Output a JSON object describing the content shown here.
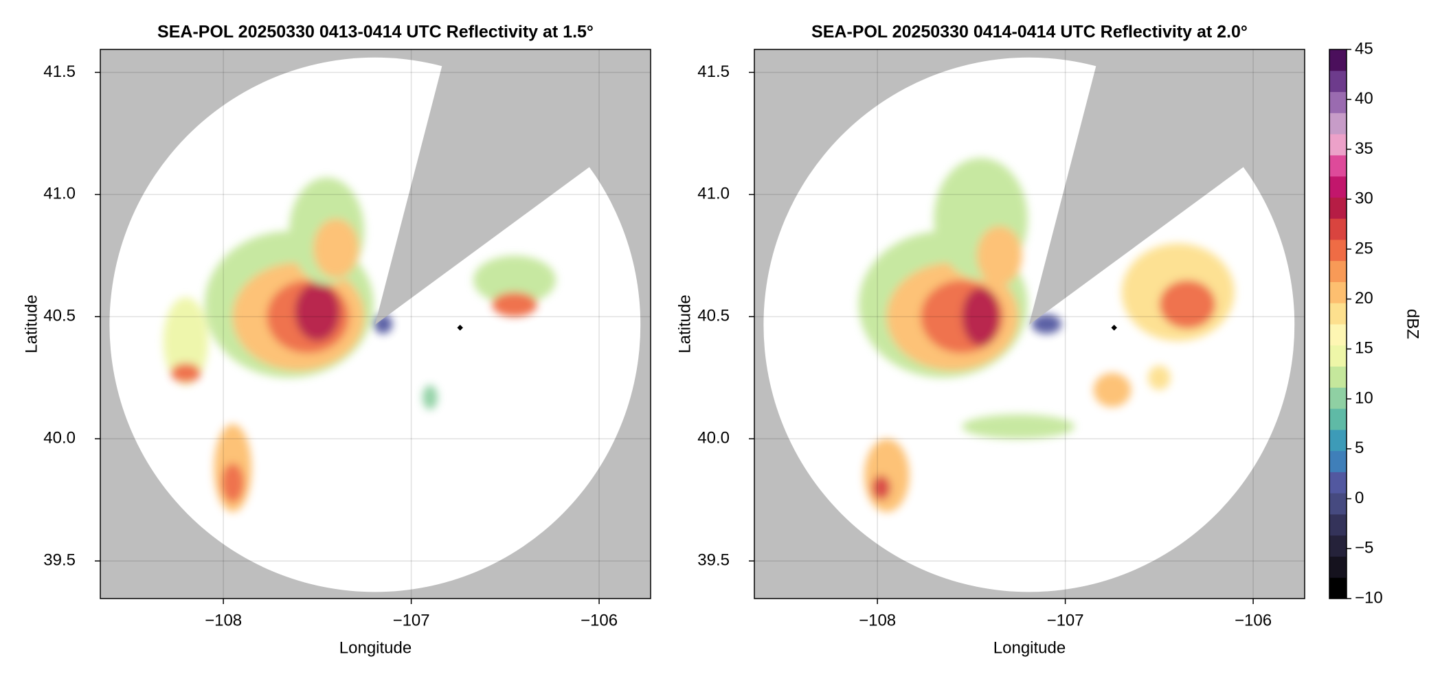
{
  "chart_data": [
    {
      "type": "radar-ppi",
      "title": "SEA-POL 20250330 0413-0414 UTC Reflectivity at 1.5°",
      "x_label": "Longitude",
      "y_label": "Latitude",
      "xlim": [
        -108.655,
        -105.726
      ],
      "ylim": [
        39.346,
        41.594
      ],
      "xticks": [
        {
          "value": -108,
          "label": "−108"
        },
        {
          "value": -107,
          "label": "−107"
        },
        {
          "value": -106,
          "label": "−106"
        }
      ],
      "yticks": [
        39.5,
        {
          "value": 40,
          "label": "40.0"
        },
        40.5,
        {
          "value": 41,
          "label": "41.0"
        },
        41.5
      ],
      "grid": true
    },
    {
      "type": "radar-ppi",
      "title": "SEA-POL 20250330 0414-0414 UTC Reflectivity at 2.0°",
      "x_label": "Longitude",
      "y_label": "Latitude",
      "xlim": [
        -108.655,
        -105.726
      ],
      "ylim": [
        39.346,
        41.594
      ],
      "xticks": [
        {
          "value": -108,
          "label": "−108"
        },
        {
          "value": -107,
          "label": "−107"
        },
        {
          "value": -106,
          "label": "−106"
        }
      ],
      "yticks": [
        39.5,
        {
          "value": 40,
          "label": "40.0"
        },
        40.5,
        {
          "value": 41,
          "label": "41.0"
        },
        41.5
      ],
      "grid": true
    }
  ],
  "colorbar": {
    "label": "dBZ",
    "lim": [
      -10,
      45
    ],
    "ticks": [
      {
        "value": -10,
        "label": "−10"
      },
      {
        "value": -5,
        "label": "−5"
      },
      0,
      5,
      10,
      15,
      20,
      25,
      30,
      35,
      40,
      45
    ],
    "colors": [
      "#000000",
      "#15121e",
      "#25223a",
      "#34335a",
      "#464a80",
      "#5258a0",
      "#3f7fb9",
      "#3d9bb8",
      "#5fbaa6",
      "#8fd0a3",
      "#c5e79c",
      "#eef6a8",
      "#fef6b3",
      "#fde08e",
      "#fdbf70",
      "#f89a57",
      "#ef6c45",
      "#d9443f",
      "#b61d45",
      "#c2166c",
      "#de4a9a",
      "#eca1c9",
      "#c79cc8",
      "#9a6bb0",
      "#6d3b8c",
      "#4b0f5c"
    ]
  }
}
